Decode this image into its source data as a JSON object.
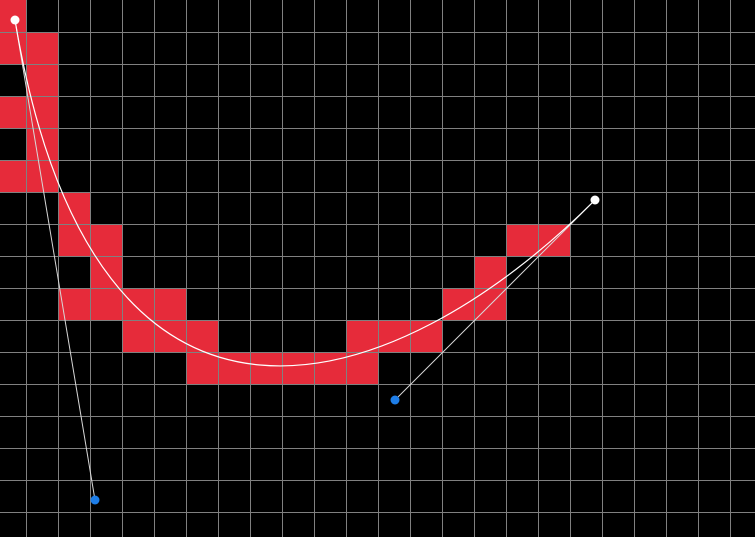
{
  "canvas": {
    "background_color": "#000000",
    "grid_color": "#808080",
    "pixel_fill_color": "#e62b3a",
    "curve_color": "#ffffff",
    "control_line_color": "#d8d8d8",
    "anchor_point_color": "#ffffff",
    "control_point_color": "#1e7ee8"
  },
  "bezier": {
    "anchors": [
      {
        "name": "start-anchor",
        "interactable": true
      },
      {
        "name": "end-anchor",
        "interactable": true
      }
    ],
    "controls": [
      {
        "name": "control-point-1",
        "interactable": true
      },
      {
        "name": "control-point-2",
        "interactable": true
      }
    ]
  }
}
